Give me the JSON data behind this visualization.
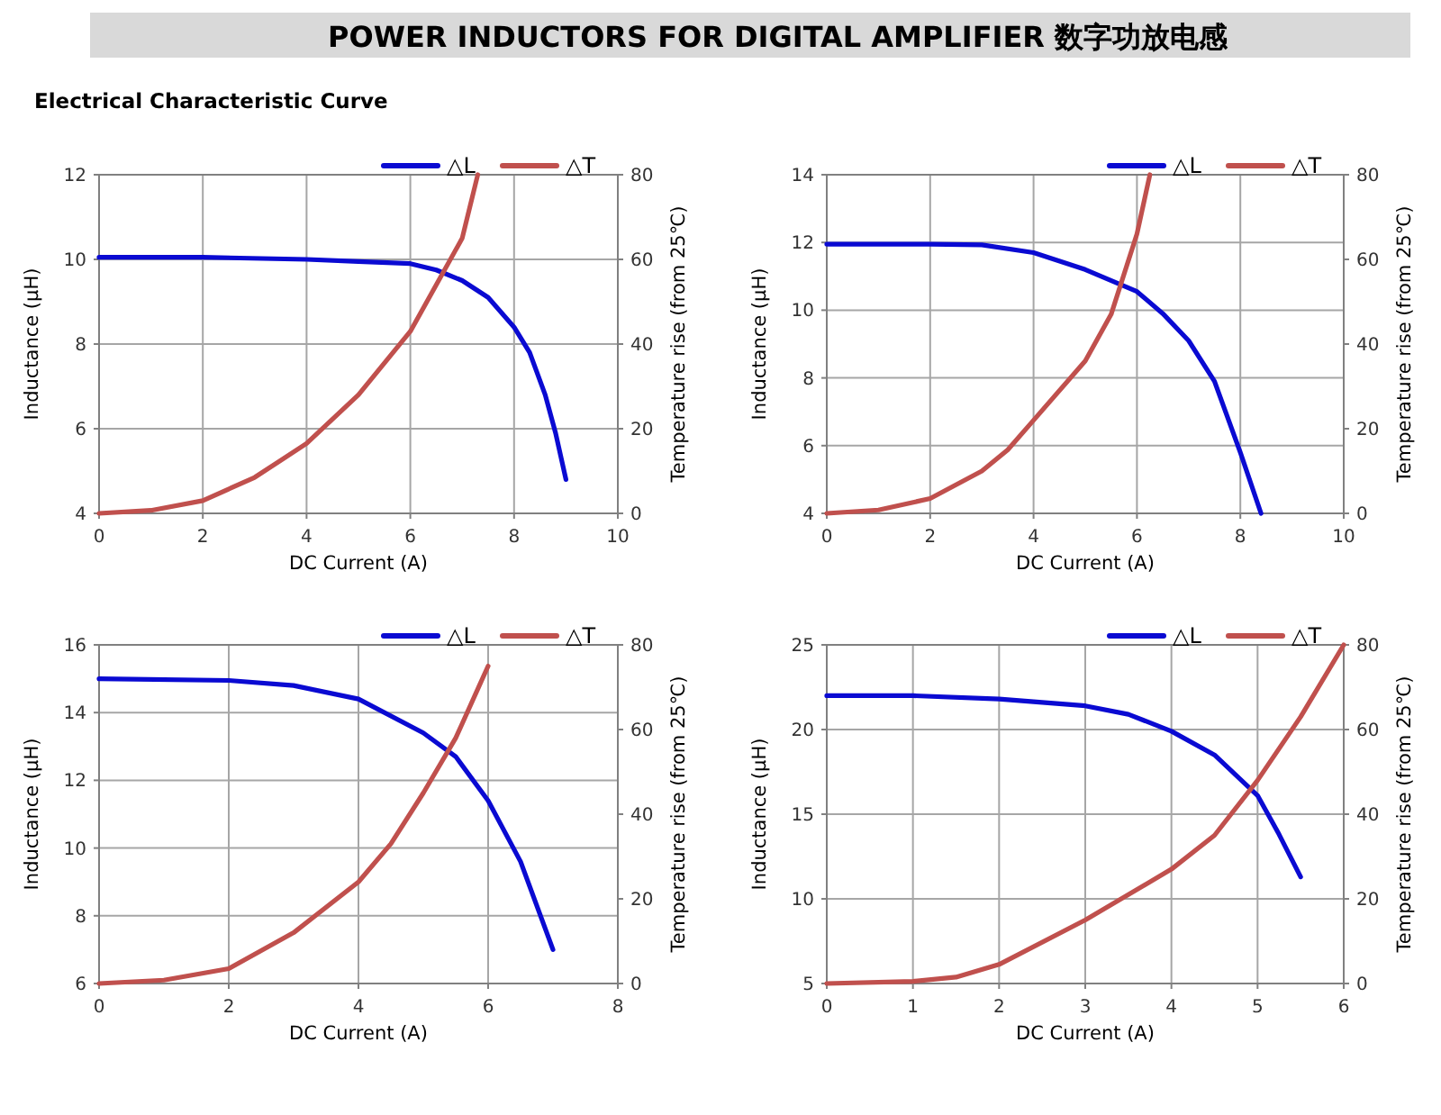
{
  "chart_data": [
    {
      "type": "other",
      "title": "POWER INDUCTORS FOR DIGITAL AMPLIFIER  数字功放电感",
      "subtitle": "Electrical Characteristic Curve"
    },
    {
      "type": "line",
      "xlabel": "DC Current (A)",
      "ylabel": "Inductance (μH)",
      "y2label": "Temperature rise (from 25℃)",
      "xlim": [
        0,
        10
      ],
      "xticks": [
        0,
        2,
        4,
        6,
        8,
        10
      ],
      "ylim": [
        4,
        12
      ],
      "yticks": [
        4,
        6,
        8,
        10,
        12
      ],
      "y2lim": [
        0,
        80
      ],
      "y2ticks": [
        0,
        20,
        40,
        60,
        80
      ],
      "grid": true,
      "legend": "top right",
      "marker": "none",
      "series": [
        {
          "name": "△L",
          "color": "#0a0ad2",
          "axis": "y",
          "x": [
            0,
            2,
            4,
            5,
            6,
            6.5,
            7,
            7.5,
            8,
            8.3,
            8.6,
            8.8,
            9
          ],
          "values": [
            10.05,
            10.05,
            10.0,
            9.95,
            9.9,
            9.75,
            9.5,
            9.1,
            8.4,
            7.8,
            6.8,
            5.9,
            4.8
          ]
        },
        {
          "name": "△T",
          "color": "#c0504d",
          "axis": "y2",
          "x": [
            0,
            1,
            2,
            3,
            4,
            5,
            6,
            6.5,
            7,
            7.3
          ],
          "values": [
            0,
            0.7,
            3,
            8.5,
            16.5,
            28,
            43,
            54,
            65,
            80
          ]
        }
      ]
    },
    {
      "type": "line",
      "xlabel": "DC Current (A)",
      "ylabel": "Inductance (μH)",
      "y2label": "Temperature rise (from 25℃)",
      "xlim": [
        0,
        10
      ],
      "xticks": [
        0,
        2,
        4,
        6,
        8,
        10
      ],
      "ylim": [
        4,
        14
      ],
      "yticks": [
        4,
        6,
        8,
        10,
        12,
        14
      ],
      "y2lim": [
        0,
        80
      ],
      "y2ticks": [
        0,
        20,
        40,
        60,
        80
      ],
      "grid": true,
      "legend": "top right",
      "marker": "none",
      "series": [
        {
          "name": "△L",
          "color": "#0a0ad2",
          "axis": "y",
          "x": [
            0,
            2,
            3,
            4,
            5,
            6,
            6.5,
            7,
            7.5,
            8,
            8.4
          ],
          "values": [
            11.95,
            11.95,
            11.93,
            11.7,
            11.2,
            10.55,
            9.9,
            9.1,
            7.9,
            5.8,
            4.0
          ]
        },
        {
          "name": "△T",
          "color": "#c0504d",
          "axis": "y2",
          "x": [
            0,
            1,
            2,
            3,
            3.5,
            4,
            5,
            5.5,
            6,
            6.25
          ],
          "values": [
            0,
            0.8,
            3.5,
            10,
            15,
            22,
            36,
            47,
            66,
            80
          ]
        }
      ]
    },
    {
      "type": "line",
      "xlabel": "DC Current (A)",
      "ylabel": "Inductance (μH)",
      "y2label": "Temperature rise (from 25℃)",
      "xlim": [
        0,
        8
      ],
      "xticks": [
        0,
        2,
        4,
        6,
        8
      ],
      "ylim": [
        6,
        16
      ],
      "yticks": [
        6,
        8,
        10,
        12,
        14,
        16
      ],
      "y2lim": [
        0,
        80
      ],
      "y2ticks": [
        0,
        20,
        40,
        60,
        80
      ],
      "grid": true,
      "legend": "top right",
      "marker": "none",
      "series": [
        {
          "name": "△L",
          "color": "#0a0ad2",
          "axis": "y",
          "x": [
            0,
            2,
            3,
            4,
            5,
            5.5,
            6,
            6.5,
            7
          ],
          "values": [
            15,
            14.95,
            14.8,
            14.4,
            13.4,
            12.7,
            11.4,
            9.6,
            7.0
          ]
        },
        {
          "name": "△T",
          "color": "#c0504d",
          "axis": "y2",
          "x": [
            0,
            1,
            2,
            3,
            4,
            4.5,
            5,
            5.5,
            6
          ],
          "values": [
            0,
            0.8,
            3.5,
            12,
            24,
            33,
            45,
            58,
            75
          ]
        }
      ]
    },
    {
      "type": "line",
      "xlabel": "DC Current (A)",
      "ylabel": "Inductance (μH)",
      "y2label": "Temperature rise (from 25℃)",
      "xlim": [
        0,
        6
      ],
      "xticks": [
        0,
        1,
        2,
        3,
        4,
        5,
        6
      ],
      "ylim": [
        5,
        25
      ],
      "yticks": [
        5,
        10,
        15,
        20,
        25
      ],
      "y2lim": [
        0,
        80
      ],
      "y2ticks": [
        0,
        20,
        40,
        60,
        80
      ],
      "grid": true,
      "legend": "top right",
      "marker": "none",
      "series": [
        {
          "name": "△L",
          "color": "#0a0ad2",
          "axis": "y",
          "x": [
            0,
            1,
            2,
            3,
            3.5,
            4,
            4.5,
            5,
            5.25,
            5.5
          ],
          "values": [
            22,
            22,
            21.8,
            21.4,
            20.9,
            19.9,
            18.5,
            16.1,
            13.8,
            11.3
          ]
        },
        {
          "name": "△T",
          "color": "#c0504d",
          "axis": "y2",
          "x": [
            0,
            1,
            1.5,
            2,
            3,
            4,
            4.5,
            5,
            5.5,
            6
          ],
          "values": [
            0,
            0.5,
            1.5,
            4.5,
            15,
            27,
            35,
            48,
            63,
            80
          ]
        }
      ]
    }
  ]
}
